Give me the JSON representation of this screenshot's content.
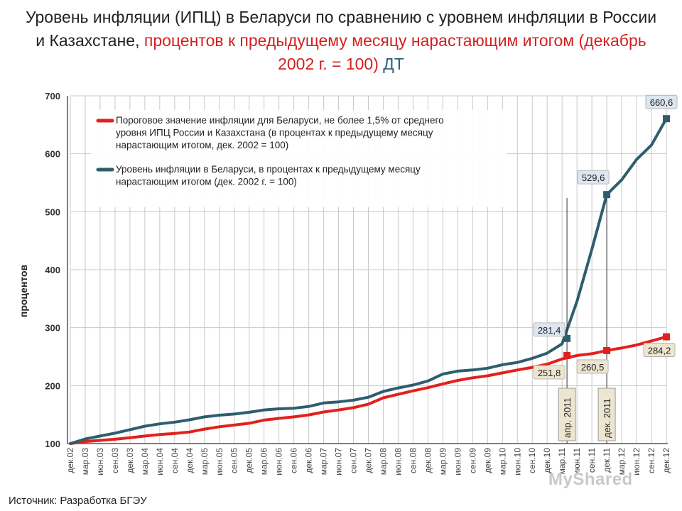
{
  "title": {
    "line1": "Уровень инфляции (ИПЦ) в Беларуси по сравнению с уровнем инфляции в России",
    "line2_black": "и Казахстане, ",
    "line2_red": "процентов к предыдущему месяцу нарастающим итогом (декабрь",
    "line3_red": "2002 г. = 100)",
    "line3_blue": " ДТ"
  },
  "source": "Источник: Разработка БГЭУ",
  "watermark": "MyShared",
  "colors": {
    "threshold": "#e3201b",
    "belarus": "#2e5e6e",
    "grid": "#c8c8c8"
  },
  "chart_data": {
    "type": "line",
    "ylabel": "процентов",
    "ylim": [
      100,
      700
    ],
    "yticks": [
      100,
      200,
      300,
      400,
      500,
      600,
      700
    ],
    "grid": true,
    "legend_position": "top-left",
    "x_tick_labels": [
      "дек.02",
      "мар.03",
      "июн.03",
      "сен.03",
      "дек.03",
      "мар.04",
      "июн.04",
      "сен.04",
      "дек.04",
      "мар.05",
      "июн.05",
      "сен.05",
      "дек.05",
      "мар.06",
      "июн.06",
      "сен.06",
      "дек.06",
      "мар.07",
      "июн.07",
      "сен.07",
      "дек.07",
      "мар.08",
      "июн.08",
      "сен.08",
      "дек.08",
      "мар.09",
      "июн.09",
      "сен.09",
      "дек.09",
      "мар.10",
      "июн.10",
      "сен.10",
      "дек.10",
      "мар.11",
      "июн.11",
      "сен.11",
      "дек.11",
      "мар.12",
      "июн.12",
      "сен.12",
      "дек.12"
    ],
    "series": [
      {
        "name": "Пороговое значение инфляции для Беларуси, не более 1,5% от среднего уровня ИПЦ России и Казахстана (в процентах к предыдущему месяцу нарастающим итогом, дек. 2002 = 100)",
        "color": "#e3201b",
        "values": [
          100,
          103.5,
          105.5,
          107.5,
          110,
          113,
          115.5,
          117.5,
          120,
          125,
          129,
          132,
          135,
          140.5,
          143.5,
          146,
          149.5,
          154.5,
          158,
          162,
          168,
          179,
          185,
          191,
          196.5,
          203,
          209,
          213.5,
          217,
          222,
          227,
          231.5,
          237,
          246,
          252,
          255,
          260.5,
          265,
          270,
          277,
          284.2
        ]
      },
      {
        "name": "Уровень инфляции в Беларуси, в процентах к предыдущему месяцу нарастающим итогом (дек. 2002 г. = 100)",
        "color": "#2e5e6e",
        "values": [
          100,
          108,
          113,
          118,
          124,
          130,
          134,
          137,
          141,
          146,
          149,
          151,
          154,
          158,
          160,
          161,
          164,
          170,
          172,
          175,
          180,
          190,
          196,
          201,
          208,
          220,
          225,
          227,
          230,
          236,
          240,
          247,
          256,
          272,
          345,
          435,
          529.6,
          555,
          590,
          615,
          660.6
        ]
      }
    ],
    "point_labels": [
      {
        "text": "281,4",
        "index": 33.33,
        "value": 281.4,
        "series": 1
      },
      {
        "text": "251,8",
        "index": 33.33,
        "value": 251.8,
        "series": 0
      },
      {
        "text": "529,6",
        "index": 36,
        "value": 529.6,
        "series": 1
      },
      {
        "text": "260,5",
        "index": 36,
        "value": 260.5,
        "series": 0
      },
      {
        "text": "660,6",
        "index": 40,
        "value": 660.6,
        "series": 1
      },
      {
        "text": "284,2",
        "index": 40,
        "value": 284.2,
        "series": 0
      }
    ],
    "vertical_markers": [
      {
        "text": "апр. 2011",
        "index": 33.33
      },
      {
        "text": "дек. 2011",
        "index": 36
      }
    ]
  }
}
